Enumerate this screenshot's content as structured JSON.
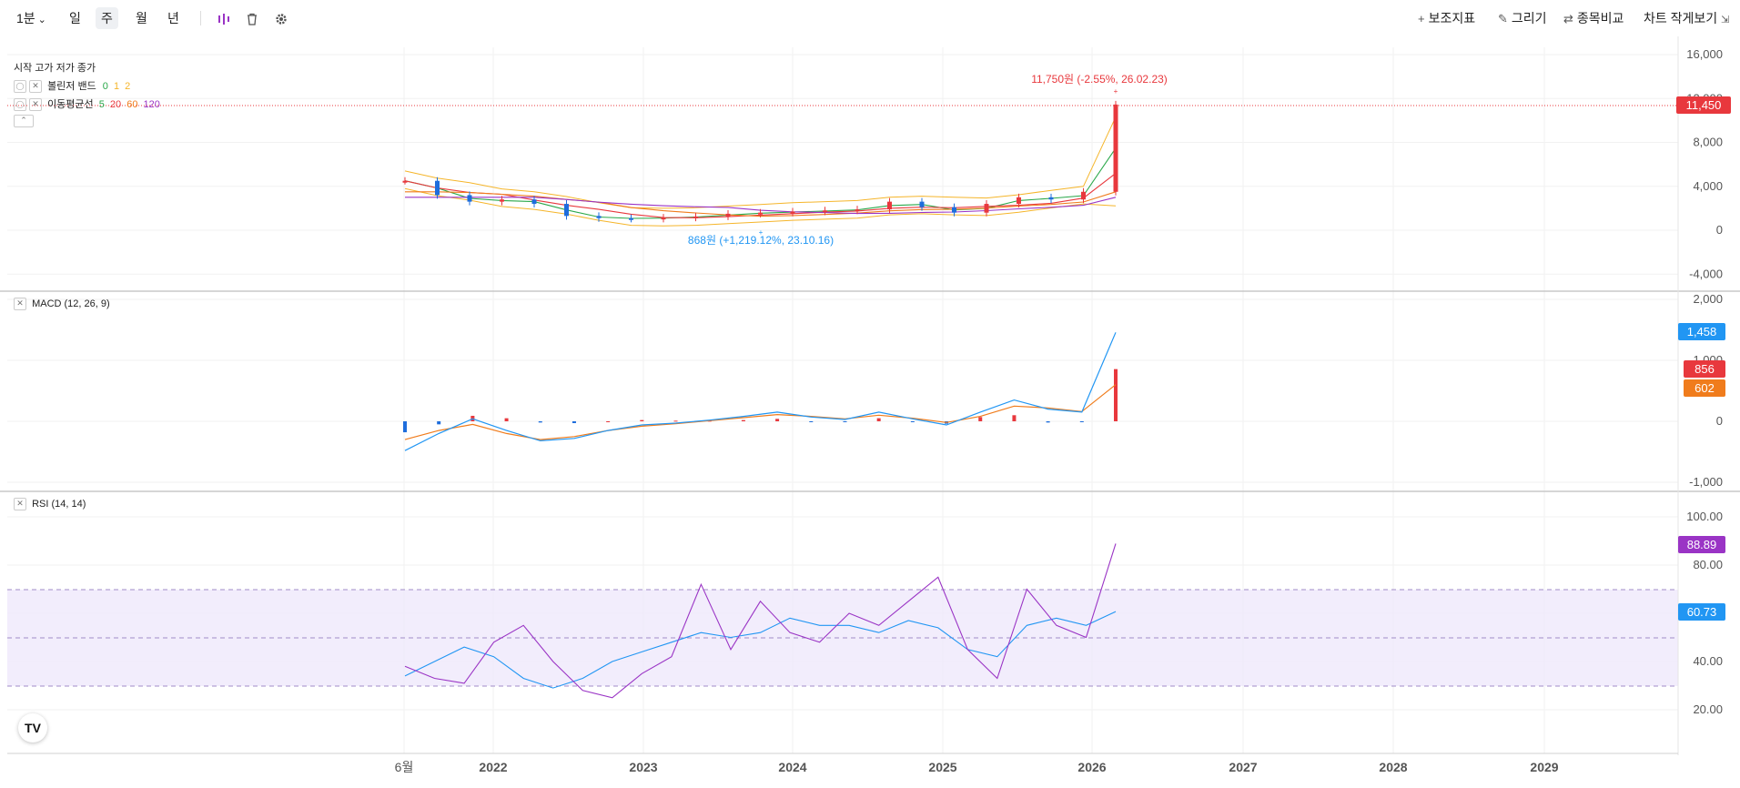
{
  "toolbar": {
    "interval": "1분",
    "periods": [
      "일",
      "주",
      "월",
      "년"
    ],
    "active_period": "주",
    "right_items": [
      "보조지표",
      "그리기",
      "종목비교",
      "차트 작게보기"
    ]
  },
  "legend": {
    "ohlc": "시작 고가 저가 종가",
    "bollinger": {
      "label": "볼린저 밴드",
      "params": [
        "0",
        "1",
        "2"
      ]
    },
    "ma": {
      "label": "이동평균선",
      "params": [
        "5",
        "20",
        "60",
        "120"
      ]
    },
    "macd": "MACD (12, 26, 9)",
    "rsi": "RSI (14, 14)"
  },
  "colors": {
    "up": "#e8383d",
    "down": "#1e6ddc",
    "ma5": "#2aa84a",
    "ma20": "#e8383d",
    "ma60": "#f07c1c",
    "ma120": "#9a34c5",
    "bollinger": "#f5b52a",
    "macd_line": "#2196f3",
    "signal_line": "#f07c1c",
    "rsi_line": "#9a34c5",
    "rsi_signal": "#2196f3"
  },
  "price_axis": {
    "ticks": [
      "16,000",
      "12,000",
      "8,000",
      "4,000",
      "0",
      "-4,000"
    ]
  },
  "macd_axis": {
    "ticks": [
      "2,000",
      "1,000",
      "0",
      "-1,000"
    ]
  },
  "rsi_axis": {
    "ticks": [
      "100.00",
      "80.00",
      "60.00",
      "40.00",
      "20.00"
    ]
  },
  "x_axis": {
    "labels": [
      "6월",
      "2022",
      "2023",
      "2024",
      "2025",
      "2026",
      "2027",
      "2028",
      "2029"
    ]
  },
  "annotations": {
    "high": "11,750원 (-2.55%, 26.02.23)",
    "low": "868원 (+1,219.12%, 23.10.16)"
  },
  "price_tags": {
    "last_price": "11,450",
    "macd": "1,458",
    "macd_hist": "856",
    "signal": "602",
    "rsi": "88.89",
    "rsi_signal": "60.73"
  },
  "chart_data": [
    {
      "type": "line",
      "panel": "price",
      "x_labels": [
        "6월",
        "2022",
        "2023",
        "2024",
        "2025",
        "2026"
      ],
      "ylim": [
        -4000,
        16000
      ],
      "series": [
        {
          "name": "종가",
          "values": [
            4500,
            3200,
            2600,
            2800,
            2400,
            1300,
            1100,
            1050,
            1150,
            1250,
            1500,
            1600,
            1700,
            1800,
            1900,
            2600,
            2100,
            1600,
            2400,
            3000,
            2800,
            3500,
            11450
          ]
        }
      ],
      "high_point": {
        "value": 11750,
        "date": "26.02.23"
      },
      "low_point": {
        "value": 868,
        "date": "23.10.16"
      }
    },
    {
      "type": "line",
      "panel": "macd",
      "ylim": [
        -1000,
        2000
      ],
      "series": [
        {
          "name": "MACD",
          "values": [
            -480,
            -200,
            40,
            -150,
            -320,
            -280,
            -150,
            -60,
            -30,
            20,
            80,
            150,
            70,
            30,
            150,
            40,
            -60,
            150,
            350,
            200,
            150,
            1458
          ]
        },
        {
          "name": "Signal",
          "values": [
            -300,
            -150,
            -50,
            -200,
            -300,
            -250,
            -150,
            -80,
            -40,
            10,
            60,
            110,
            80,
            40,
            100,
            50,
            -20,
            80,
            250,
            220,
            160,
            602
          ]
        }
      ]
    },
    {
      "type": "line",
      "panel": "rsi",
      "ylim": [
        0,
        100
      ],
      "series": [
        {
          "name": "RSI",
          "values": [
            38,
            33,
            31,
            48,
            55,
            40,
            28,
            25,
            35,
            42,
            72,
            45,
            65,
            52,
            48,
            60,
            55,
            65,
            75,
            45,
            33,
            70,
            55,
            50,
            88.89
          ]
        },
        {
          "name": "RSI Signal",
          "values": [
            34,
            40,
            46,
            42,
            33,
            29,
            33,
            40,
            44,
            48,
            52,
            50,
            52,
            58,
            55,
            55,
            52,
            57,
            54,
            45,
            42,
            55,
            58,
            55,
            60.73
          ]
        }
      ]
    }
  ]
}
